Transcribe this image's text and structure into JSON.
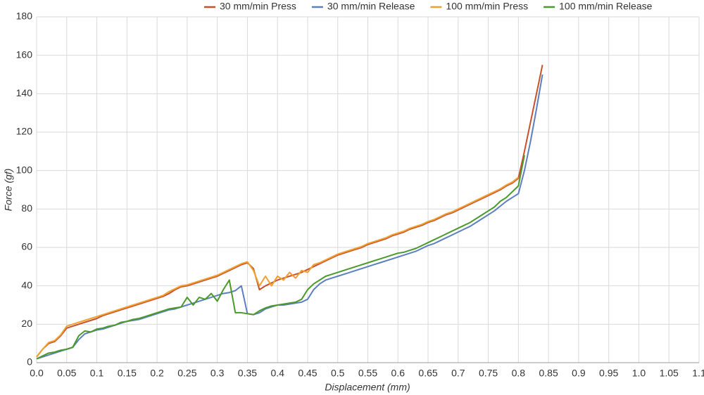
{
  "chart_data": {
    "type": "line",
    "x_label": "Displacement (mm)",
    "y_label": "Force (gf)",
    "x": [
      0,
      0.01,
      0.02,
      0.03,
      0.04,
      0.05,
      0.06,
      0.07,
      0.08,
      0.09,
      0.1,
      0.11,
      0.12,
      0.13,
      0.14,
      0.15,
      0.16,
      0.17,
      0.18,
      0.19,
      0.2,
      0.21,
      0.22,
      0.23,
      0.24,
      0.25,
      0.26,
      0.27,
      0.28,
      0.29,
      0.3,
      0.31,
      0.32,
      0.33,
      0.34,
      0.35,
      0.36,
      0.37,
      0.38,
      0.39,
      0.4,
      0.41,
      0.42,
      0.43,
      0.44,
      0.45,
      0.46,
      0.47,
      0.48,
      0.49,
      0.5,
      0.51,
      0.52,
      0.53,
      0.54,
      0.55,
      0.56,
      0.57,
      0.58,
      0.59,
      0.6,
      0.61,
      0.62,
      0.63,
      0.64,
      0.65,
      0.66,
      0.67,
      0.68,
      0.69,
      0.7,
      0.71,
      0.72,
      0.73,
      0.74,
      0.75,
      0.76,
      0.77,
      0.78,
      0.79,
      0.8,
      0.81,
      0.82,
      0.83,
      0.84
    ],
    "series": [
      {
        "name": "30 mm/min Press",
        "color": "#c8502a",
        "values": [
          3,
          7,
          10,
          11,
          14,
          18,
          19,
          20,
          21,
          22,
          23,
          24.5,
          25.5,
          26.5,
          27.5,
          28.5,
          29.5,
          30.5,
          31.5,
          32.5,
          33.5,
          34.5,
          36,
          38,
          39.5,
          40,
          41,
          42,
          43,
          44,
          45,
          46.5,
          48,
          49.5,
          51,
          52,
          49,
          38,
          40,
          41.5,
          43,
          44,
          45,
          46,
          47,
          48.5,
          50,
          51.5,
          53,
          54.5,
          56,
          57,
          58,
          59,
          60,
          61.5,
          62.5,
          63.5,
          64.5,
          66,
          67,
          68,
          69.5,
          70.5,
          71.5,
          73,
          74,
          75.5,
          77,
          78,
          79.5,
          81,
          82.5,
          84,
          85.5,
          87,
          88.5,
          90,
          92,
          93.5,
          96,
          110,
          125,
          140,
          155
        ]
      },
      {
        "name": "30 mm/min Release",
        "color": "#5b7fbf",
        "values": [
          2,
          3,
          4,
          5,
          6,
          7,
          8,
          12,
          15,
          16,
          17,
          17.5,
          18.5,
          19.5,
          20.5,
          21.5,
          22,
          22.5,
          23.5,
          24.5,
          25.5,
          26.5,
          27.5,
          28,
          29,
          30,
          31,
          32,
          33,
          34,
          35,
          36,
          36.5,
          37.5,
          40,
          25.5,
          25,
          26,
          28,
          29,
          30,
          30,
          30.5,
          31,
          31.5,
          33,
          38,
          41,
          43,
          44,
          45,
          46,
          47,
          48,
          49,
          50,
          51,
          52,
          53,
          54,
          55,
          56,
          57,
          58,
          59.5,
          61,
          62,
          63.5,
          65,
          66.5,
          68,
          69.5,
          71,
          73,
          75,
          77,
          79,
          81.5,
          84,
          86,
          88,
          100,
          115,
          132,
          150
        ]
      },
      {
        "name": "100 mm/min Press",
        "color": "#f0a030",
        "values": [
          3,
          7,
          10.5,
          11.5,
          14.5,
          19,
          20,
          21,
          22,
          23,
          24,
          25,
          26,
          27,
          28,
          29,
          30,
          31,
          32,
          33,
          34,
          35,
          37,
          38.5,
          40,
          40.5,
          41.5,
          42.5,
          43.5,
          44.5,
          45.5,
          47,
          48.5,
          50,
          51.5,
          52.5,
          48,
          40,
          45,
          40,
          45,
          43,
          47,
          44,
          48,
          47,
          51,
          52,
          53.5,
          55,
          56.5,
          57.5,
          58.5,
          59.5,
          60.5,
          62,
          63,
          64,
          65,
          66.5,
          67.5,
          68.5,
          70,
          71,
          72,
          73.5,
          74.5,
          76,
          77.5,
          78.5,
          80,
          81.5,
          83,
          84.5,
          86,
          87.5,
          89,
          90.5,
          92.5,
          94,
          96.5,
          null,
          null,
          null,
          null
        ]
      },
      {
        "name": "100 mm/min Release",
        "color": "#4a9a2a",
        "values": [
          2,
          3.5,
          5,
          5.5,
          6.5,
          7,
          8,
          14,
          16.5,
          16,
          17.5,
          18,
          19,
          19.5,
          21,
          21.5,
          22.5,
          23,
          24,
          25,
          26,
          27,
          28,
          28.5,
          29,
          34,
          30,
          34,
          33,
          36,
          32,
          38,
          43,
          26,
          26,
          25.5,
          25,
          27,
          28.5,
          29.5,
          30,
          30.5,
          31,
          31.5,
          33,
          38,
          41,
          43,
          45,
          46,
          47,
          48,
          49,
          50,
          51,
          52,
          53,
          54,
          55,
          56,
          57,
          57.5,
          58.5,
          59.5,
          61,
          62.5,
          64,
          65.5,
          67,
          68.5,
          70,
          71.5,
          73,
          75,
          77,
          79,
          81,
          84,
          86,
          89,
          92,
          108,
          null,
          null,
          null
        ]
      }
    ],
    "xlim": [
      0,
      1.1
    ],
    "ylim": [
      0,
      180
    ],
    "xticks": [
      {
        "value": 0,
        "label": "0.0"
      },
      0.05,
      0.1,
      0.15,
      0.2,
      0.25,
      0.3,
      0.35,
      0.4,
      0.45,
      0.5,
      0.55,
      0.6,
      0.65,
      0.7,
      0.75,
      0.8,
      0.85,
      0.9,
      0.95,
      {
        "value": 1,
        "label": "1.0"
      },
      1.05,
      1.1
    ],
    "yticks": [
      0,
      20,
      40,
      60,
      80,
      100,
      120,
      140,
      160,
      180
    ],
    "grid": true,
    "legend": "top"
  }
}
